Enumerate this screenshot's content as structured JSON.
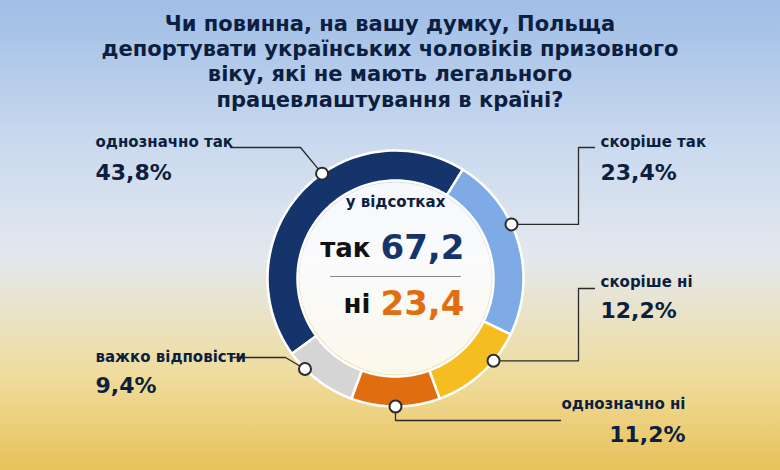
{
  "chart_data": {
    "type": "donut",
    "title": "Чи повинна, на вашу думку, Польща депортувати українських чоловіків призовного віку, які не мають легального працевлаштування в країні?",
    "center_label": "у відсотках",
    "categories": [
      "однозначно так",
      "скоріше так",
      "скоріше ні",
      "однозначно ні",
      "важко відповісти"
    ],
    "values": [
      43.8,
      23.4,
      12.2,
      11.2,
      9.4
    ],
    "value_labels": [
      "43,8%",
      "23,4%",
      "12,2%",
      "11,2%",
      "9,4%"
    ],
    "colors": [
      "#15346b",
      "#7eaae6",
      "#f5bd1f",
      "#e06e10",
      "#d5d5d5"
    ],
    "data_labels": true,
    "summary": [
      {
        "label": "так",
        "value": 67.2,
        "value_label": "67,2",
        "color": "#15346b"
      },
      {
        "label": "ні",
        "value": 23.4,
        "value_label": "23,4",
        "color": "#e06e10"
      }
    ]
  }
}
